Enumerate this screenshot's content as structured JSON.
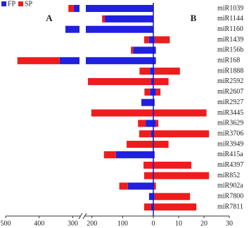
{
  "chart_data": [
    {
      "type": "bar",
      "orientation": "horizontal",
      "direction": "left",
      "title": "A",
      "xlim": [
        0,
        500
      ],
      "xbreak": [
        220,
        280
      ],
      "xticks": [
        100,
        200,
        300,
        400,
        500
      ],
      "series": [
        {
          "name": "FP",
          "color": "#2020e0",
          "values": [
            297,
            158,
            322,
            14,
            66,
            339,
            11,
            7,
            11,
            39,
            2,
            25,
            7,
            0,
            122,
            0,
            0,
            83,
            14,
            7
          ]
        },
        {
          "name": "SP",
          "color": "#ee1c1c",
          "values": [
            16,
            9,
            0,
            16,
            7,
            126,
            34,
            206,
            18,
            0,
            200,
            25,
            39,
            87,
            39,
            32,
            30,
            28,
            0,
            23
          ]
        }
      ]
    },
    {
      "type": "bar",
      "orientation": "horizontal",
      "direction": "right",
      "title": "B",
      "xlim": [
        0,
        30
      ],
      "xticks": [
        0,
        10,
        20,
        30
      ],
      "categories": [
        "miR1039",
        "miR1144",
        "miR1160",
        "miR1439",
        "miR156b",
        "miR168",
        "miR1888",
        "miR2592",
        "miR2607",
        "miR2927",
        "miR3445",
        "miR3629",
        "miR3706",
        "miR3949",
        "miR415a",
        "miR4397",
        "miR852",
        "miR902a",
        "miR7800",
        "miR7811"
      ],
      "series": [
        {
          "color": "#2020e0",
          "values": [
            0,
            0,
            0,
            0.5,
            1,
            1,
            0.5,
            0,
            1,
            0.5,
            0,
            1,
            0,
            0,
            0.5,
            0,
            0,
            0,
            0.5,
            0
          ]
        },
        {
          "color": "#ee1c1c",
          "values": [
            0,
            0,
            0,
            6,
            0,
            0,
            10,
            6,
            1.8,
            0,
            21,
            1,
            22,
            6,
            0,
            15,
            22,
            1,
            14,
            17
          ]
        }
      ]
    }
  ]
}
